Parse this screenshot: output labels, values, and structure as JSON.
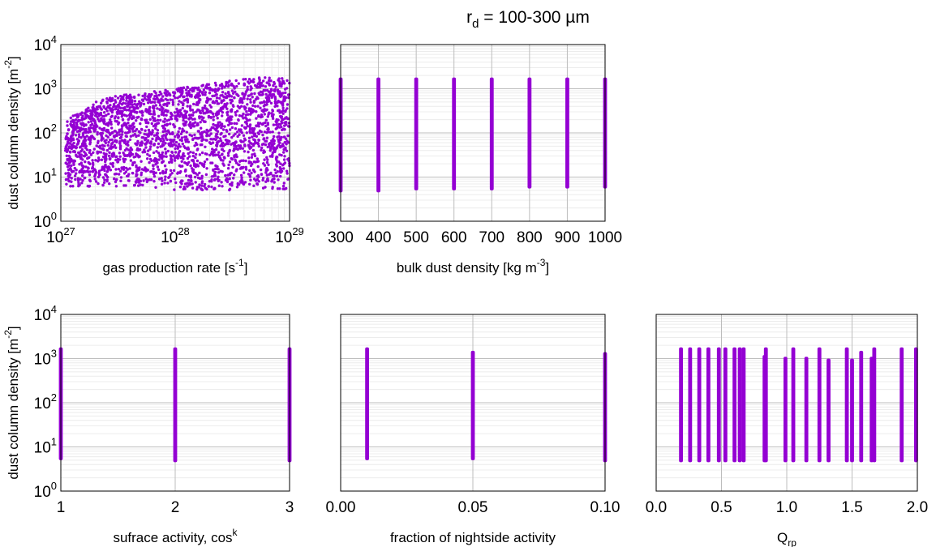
{
  "figure": {
    "title_main": "r",
    "title_sub": "d",
    "title_rest": " = 100-300 µm"
  },
  "chart_data": [
    {
      "type": "scatter",
      "xlabel": {
        "main": "gas production rate [s",
        "sup": "-1",
        "rest": "]"
      },
      "ylabel": {
        "main": "dust column density [m",
        "sup": "-2",
        "rest": "]"
      },
      "xscale": "log",
      "yscale": "log",
      "xlim": [
        1e+27,
        1e+29
      ],
      "ylim": [
        1,
        10000
      ],
      "x_ticks": [
        {
          "base": "10",
          "exp": "27",
          "v": 1e+27
        },
        {
          "base": "10",
          "exp": "28",
          "v": 1e+28
        },
        {
          "base": "10",
          "exp": "29",
          "v": 1e+29
        }
      ],
      "y_ticks": [
        {
          "base": "10",
          "exp": "0",
          "v": 1
        },
        {
          "base": "10",
          "exp": "1",
          "v": 10
        },
        {
          "base": "10",
          "exp": "2",
          "v": 100
        },
        {
          "base": "10",
          "exp": "3",
          "v": 1000
        },
        {
          "base": "10",
          "exp": "4",
          "v": 10000
        }
      ],
      "show_y_tick_labels": true,
      "grid": true,
      "marker_color": "#9400d3",
      "dist": "cloud",
      "points_envelope": {
        "x": [
          1.1e+27,
          1.5e+27,
          2e+27,
          3e+27,
          5e+27,
          1e+28,
          2e+28,
          5e+28,
          1e+29
        ],
        "y_upper": [
          200,
          300,
          500,
          700,
          800,
          1000,
          1300,
          1800,
          1800
        ],
        "y_lower": [
          6,
          6,
          6,
          6,
          6,
          5,
          5,
          5,
          5
        ]
      }
    },
    {
      "type": "scatter",
      "xlabel": {
        "main": "bulk dust density [kg m",
        "sup": "-3",
        "rest": "]"
      },
      "ylabel": null,
      "xscale": "linear",
      "yscale": "log",
      "xlim": [
        300,
        1000
      ],
      "ylim": [
        1,
        10000
      ],
      "x_ticks": [
        {
          "label": "300",
          "v": 300
        },
        {
          "label": "400",
          "v": 400
        },
        {
          "label": "500",
          "v": 500
        },
        {
          "label": "600",
          "v": 600
        },
        {
          "label": "700",
          "v": 700
        },
        {
          "label": "800",
          "v": 800
        },
        {
          "label": "900",
          "v": 900
        },
        {
          "label": "1000",
          "v": 1000
        }
      ],
      "y_ticks": [
        {
          "v": 1
        },
        {
          "v": 10
        },
        {
          "v": 100
        },
        {
          "v": 1000
        },
        {
          "v": 10000
        }
      ],
      "show_y_tick_labels": false,
      "grid": true,
      "marker_color": "#9400d3",
      "dist": "columns",
      "columns": [
        {
          "x": 300,
          "y_min": 4.5,
          "y_max": 1800
        },
        {
          "x": 400,
          "y_min": 4.5,
          "y_max": 1800
        },
        {
          "x": 500,
          "y_min": 5,
          "y_max": 1800
        },
        {
          "x": 600,
          "y_min": 5,
          "y_max": 1800
        },
        {
          "x": 700,
          "y_min": 5,
          "y_max": 1800
        },
        {
          "x": 800,
          "y_min": 5.5,
          "y_max": 1800
        },
        {
          "x": 900,
          "y_min": 5.5,
          "y_max": 1800
        },
        {
          "x": 1000,
          "y_min": 5.5,
          "y_max": 1800
        }
      ]
    },
    {
      "type": "scatter",
      "xlabel": {
        "main": "sufrace activity, cos",
        "sup": "k",
        "rest": ""
      },
      "ylabel": {
        "main": "dust column density [m",
        "sup": "-2",
        "rest": "]"
      },
      "xscale": "linear",
      "yscale": "log",
      "xlim": [
        1,
        3
      ],
      "ylim": [
        1,
        10000
      ],
      "x_ticks": [
        {
          "label": "1",
          "v": 1
        },
        {
          "label": "2",
          "v": 2
        },
        {
          "label": "3",
          "v": 3
        }
      ],
      "y_ticks": [
        {
          "base": "10",
          "exp": "0",
          "v": 1
        },
        {
          "base": "10",
          "exp": "1",
          "v": 10
        },
        {
          "base": "10",
          "exp": "2",
          "v": 100
        },
        {
          "base": "10",
          "exp": "3",
          "v": 1000
        },
        {
          "base": "10",
          "exp": "4",
          "v": 10000
        }
      ],
      "show_y_tick_labels": true,
      "grid": true,
      "marker_color": "#9400d3",
      "dist": "columns",
      "columns": [
        {
          "x": 1,
          "y_min": 5,
          "y_max": 1800
        },
        {
          "x": 2,
          "y_min": 4.5,
          "y_max": 1800
        },
        {
          "x": 3,
          "y_min": 4.5,
          "y_max": 1800
        }
      ]
    },
    {
      "type": "scatter",
      "xlabel": {
        "main": "fraction of nightside activity",
        "sup": "",
        "rest": ""
      },
      "ylabel": null,
      "xscale": "linear",
      "yscale": "log",
      "xlim": [
        0,
        0.1
      ],
      "ylim": [
        1,
        10000
      ],
      "x_ticks": [
        {
          "label": "0.00",
          "v": 0
        },
        {
          "label": "0.05",
          "v": 0.05
        },
        {
          "label": "0.10",
          "v": 0.1
        }
      ],
      "y_ticks": [
        {
          "v": 1
        },
        {
          "v": 10
        },
        {
          "v": 100
        },
        {
          "v": 1000
        },
        {
          "v": 10000
        }
      ],
      "show_y_tick_labels": false,
      "grid": true,
      "marker_color": "#9400d3",
      "dist": "columns",
      "columns": [
        {
          "x": 0.01,
          "y_min": 5,
          "y_max": 1800
        },
        {
          "x": 0.05,
          "y_min": 5,
          "y_max": 1500
        },
        {
          "x": 0.1,
          "y_min": 4.5,
          "y_max": 1400
        }
      ]
    },
    {
      "type": "scatter",
      "xlabel": {
        "main": "Q",
        "sub": "rp",
        "sup": "",
        "rest": ""
      },
      "ylabel": null,
      "xscale": "linear",
      "yscale": "log",
      "xlim": [
        0,
        2
      ],
      "ylim": [
        1,
        10000
      ],
      "x_ticks": [
        {
          "label": "0.0",
          "v": 0
        },
        {
          "label": "0.5",
          "v": 0.5
        },
        {
          "label": "1.0",
          "v": 1
        },
        {
          "label": "1.5",
          "v": 1.5
        },
        {
          "label": "2.0",
          "v": 2
        }
      ],
      "y_ticks": [
        {
          "v": 1
        },
        {
          "v": 10
        },
        {
          "v": 100
        },
        {
          "v": 1000
        },
        {
          "v": 10000
        }
      ],
      "show_y_tick_labels": false,
      "grid": true,
      "marker_color": "#9400d3",
      "dist": "columns",
      "columns": [
        {
          "x": 0.19,
          "y_min": 4.5,
          "y_max": 1800
        },
        {
          "x": 0.26,
          "y_min": 4.5,
          "y_max": 1800
        },
        {
          "x": 0.33,
          "y_min": 4.5,
          "y_max": 1800
        },
        {
          "x": 0.4,
          "y_min": 4.5,
          "y_max": 1800
        },
        {
          "x": 0.48,
          "y_min": 4.5,
          "y_max": 1800
        },
        {
          "x": 0.53,
          "y_min": 4.5,
          "y_max": 1800
        },
        {
          "x": 0.6,
          "y_min": 4.5,
          "y_max": 1800
        },
        {
          "x": 0.64,
          "y_min": 4.5,
          "y_max": 1800
        },
        {
          "x": 0.67,
          "y_min": 4.5,
          "y_max": 1800
        },
        {
          "x": 0.83,
          "y_min": 4.5,
          "y_max": 1200
        },
        {
          "x": 0.84,
          "y_min": 4.5,
          "y_max": 1800
        },
        {
          "x": 0.99,
          "y_min": 4.5,
          "y_max": 1100
        },
        {
          "x": 1.05,
          "y_min": 4.5,
          "y_max": 1800
        },
        {
          "x": 1.15,
          "y_min": 4.5,
          "y_max": 1100
        },
        {
          "x": 1.25,
          "y_min": 4.5,
          "y_max": 1800
        },
        {
          "x": 1.32,
          "y_min": 4.5,
          "y_max": 1000
        },
        {
          "x": 1.46,
          "y_min": 4.5,
          "y_max": 1800
        },
        {
          "x": 1.5,
          "y_min": 4.5,
          "y_max": 1000
        },
        {
          "x": 1.57,
          "y_min": 4.5,
          "y_max": 1500
        },
        {
          "x": 1.65,
          "y_min": 4.5,
          "y_max": 1100
        },
        {
          "x": 1.67,
          "y_min": 4.5,
          "y_max": 1800
        },
        {
          "x": 1.88,
          "y_min": 4.5,
          "y_max": 1800
        },
        {
          "x": 1.99,
          "y_min": 4.5,
          "y_max": 1800
        }
      ]
    }
  ]
}
